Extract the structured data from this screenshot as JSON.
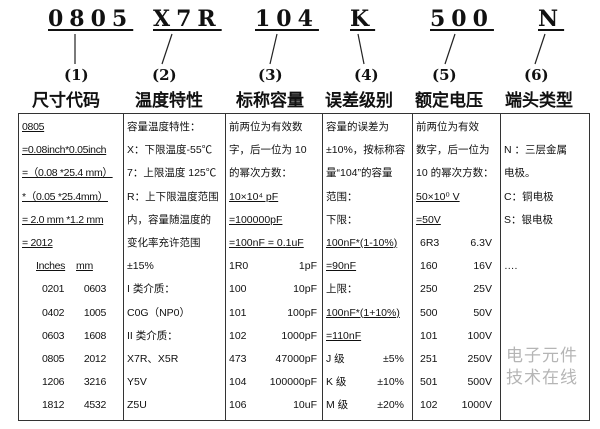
{
  "codes": [
    "0805",
    "X7R",
    "104",
    "K",
    "500",
    "N"
  ],
  "numbers": [
    "(1)",
    "(2)",
    "(3)",
    "(4)",
    "(5)",
    "(6)"
  ],
  "titles": [
    "尺寸代码",
    "温度特性",
    "标称容量",
    "误差级别",
    "额定电压",
    "端头类型"
  ],
  "col1": {
    "lines": [
      "0805",
      "=0.08inch*0.05inch",
      "=（0.08 *25.4 mm）",
      "*（0.05 *25.4mm）",
      "= 2.0 mm *1.2 mm",
      "= 2012"
    ],
    "header": [
      "Inches",
      "mm"
    ],
    "rows": [
      [
        "0201",
        "0603"
      ],
      [
        "0402",
        "1005"
      ],
      [
        "0603",
        "1608"
      ],
      [
        "0805",
        "2012"
      ],
      [
        "1206",
        "3216"
      ],
      [
        "1812",
        "4532"
      ]
    ]
  },
  "col2": {
    "lines": [
      "容量温度特性：",
      "X：下限温度-55℃",
      "7：上限温度 125℃",
      "R：上下限温度范围",
      "内，容量随温度的",
      "变化率充许范围",
      "±15%",
      "I 类介质：",
      "  C0G（NP0）",
      "II 类介质：",
      "  X7R、X5R",
      "  Y5V",
      "  Z5U"
    ]
  },
  "col3": {
    "lines": [
      "前两位为有效数",
      "字，后一位为 10",
      "的幂次方数：",
      "10×10⁴ pF",
      "=100000pF",
      "=100nF = 0.1uF"
    ],
    "rows": [
      [
        "1R0",
        "1pF"
      ],
      [
        "100",
        "10pF"
      ],
      [
        "101",
        "100pF"
      ],
      [
        "102",
        "1000pF"
      ],
      [
        "473",
        "47000pF"
      ],
      [
        "104",
        "100000pF"
      ],
      [
        "106",
        "10uF"
      ]
    ]
  },
  "col4": {
    "lines": [
      "容量的误差为",
      "±10%，按标称容",
      "量“104”的容量",
      "范围：",
      "下限：",
      "100nF*(1-10%)",
      "=90nF",
      "上限：",
      "100nF*(1+10%)",
      "=110nF"
    ],
    "rows": [
      [
        "J 级",
        "±5%"
      ],
      [
        "K 级",
        "±10%"
      ],
      [
        "M 级",
        "±20%"
      ]
    ]
  },
  "col5": {
    "lines": [
      "前两位为有效",
      "数字，后一位为",
      "10 的幂次方数：",
      "50×10⁰ V",
      "=50V"
    ],
    "rows": [
      [
        "6R3",
        "6.3V"
      ],
      [
        "160",
        "16V"
      ],
      [
        "250",
        "25V"
      ],
      [
        "500",
        "50V"
      ],
      [
        "101",
        "100V"
      ],
      [
        "251",
        "250V"
      ],
      [
        "501",
        "500V"
      ],
      [
        "102",
        "1000V"
      ]
    ]
  },
  "col6": {
    "lines": [
      "",
      "N ：三层金属",
      "电极。",
      "C：铜电极",
      "S：银电极",
      "",
      "…."
    ]
  },
  "watermark": "电子元件技术在线"
}
